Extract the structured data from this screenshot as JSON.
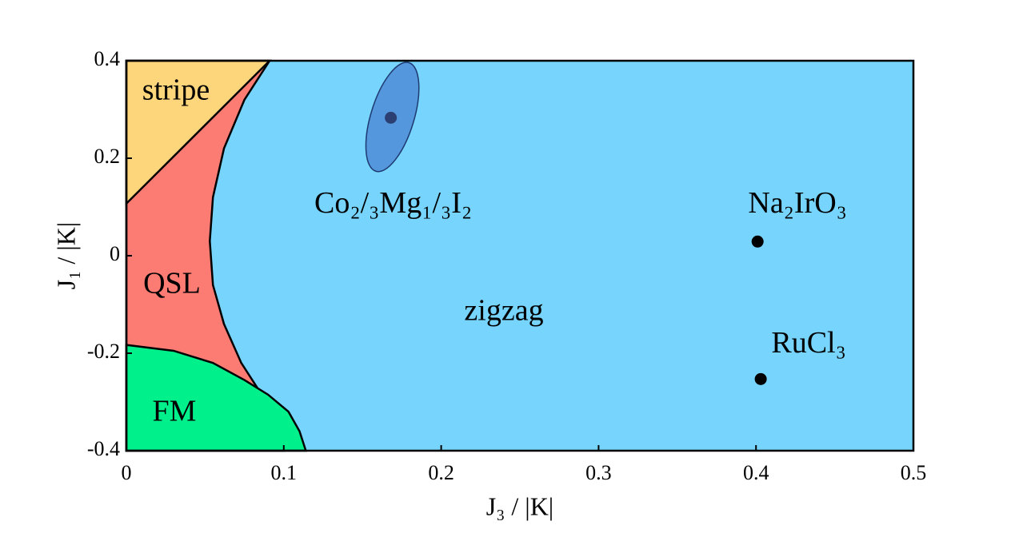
{
  "chart_data": {
    "type": "phase_diagram",
    "x_label": "J₃ / |K|",
    "y_label": "J₁ / |K|",
    "xlim": [
      0,
      0.5
    ],
    "ylim": [
      -0.4,
      0.4
    ],
    "xticks": [
      0,
      0.1,
      0.2,
      0.3,
      0.4,
      0.5
    ],
    "yticks": [
      -0.4,
      -0.2,
      0,
      0.2,
      0.4
    ],
    "background": {
      "name": "zigzag",
      "color": "#76d4fd"
    },
    "regions": [
      {
        "name": "QSL",
        "color": "#fc7c74",
        "x": [
          0,
          0.091,
          0.075,
          0.062,
          0.055,
          0.053,
          0.055,
          0.062,
          0.073,
          0.085,
          0.1,
          0
        ],
        "y": [
          0.4,
          0.4,
          0.32,
          0.22,
          0.12,
          0.03,
          -0.06,
          -0.14,
          -0.22,
          -0.28,
          -0.4,
          -0.4
        ]
      },
      {
        "name": "FM",
        "color": "#00f08c",
        "x": [
          0,
          0.03,
          0.055,
          0.075,
          0.09,
          0.103,
          0.11,
          0.114,
          0
        ],
        "y": [
          -0.183,
          -0.195,
          -0.22,
          -0.255,
          -0.285,
          -0.32,
          -0.36,
          -0.4,
          -0.4
        ]
      },
      {
        "name": "stripe",
        "color": "#fdd57a",
        "x": [
          0,
          0.091,
          0
        ],
        "y": [
          0.4,
          0.4,
          0.107
        ]
      }
    ],
    "series": [
      {
        "name": "Co₂/₃Mg₁/₃I₂",
        "color": "#2b3f72",
        "x": [
          0.168
        ],
        "y": [
          0.283
        ]
      },
      {
        "name": "Na₂IrO₃",
        "color": "#000000",
        "x": [
          0.401
        ],
        "y": [
          0.029
        ]
      },
      {
        "name": "RuCl₃",
        "color": "#000000",
        "x": [
          0.403
        ],
        "y": [
          -0.253
        ]
      }
    ]
  }
}
